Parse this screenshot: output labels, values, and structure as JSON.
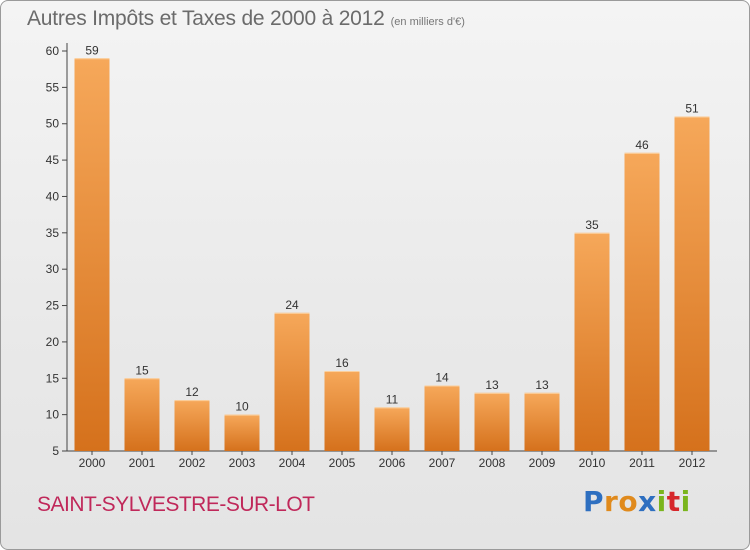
{
  "title": "Autres Impôts et Taxes de 2000 à 2012",
  "subtitle": "(en milliers d'€)",
  "commune": "SAINT-SYLVESTRE-SUR-LOT",
  "logo": {
    "letters": [
      "P",
      "r",
      "o",
      "x",
      "i",
      "t",
      "i"
    ],
    "colors": [
      "#2e6fc0",
      "#e08a1c",
      "#e08a1c",
      "#2e6fc0",
      "#7ab51d",
      "#d6262a",
      "#7ab51d"
    ]
  },
  "colors": {
    "bar_top": "#f6a85a",
    "bar_bottom": "#d5711c",
    "commune": "#c0285a",
    "title": "#6b6b6b"
  },
  "chart_data": {
    "type": "bar",
    "categories": [
      "2000",
      "2001",
      "2002",
      "2003",
      "2004",
      "2005",
      "2006",
      "2007",
      "2008",
      "2009",
      "2010",
      "2011",
      "2012"
    ],
    "values": [
      59,
      15,
      12,
      10,
      24,
      16,
      11,
      14,
      13,
      13,
      35,
      46,
      51
    ],
    "title": "Autres Impôts et Taxes de 2000 à 2012",
    "subtitle": "(en milliers d'€)",
    "xlabel": "",
    "ylabel": "",
    "ylim": [
      5,
      60
    ],
    "yticks": [
      5,
      10,
      15,
      20,
      25,
      30,
      35,
      40,
      45,
      50,
      55,
      60
    ],
    "grid": false,
    "data_labels": true
  }
}
